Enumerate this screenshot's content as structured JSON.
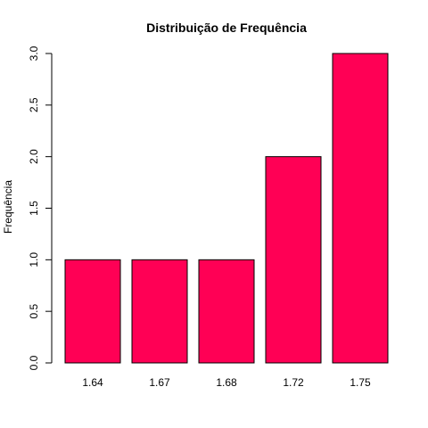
{
  "chart_data": {
    "type": "bar",
    "title": "Distribuição de Frequência",
    "xlabel": "",
    "ylabel": "Frequência",
    "categories": [
      "1.64",
      "1.67",
      "1.68",
      "1.72",
      "1.75"
    ],
    "values": [
      1,
      1,
      1,
      2,
      3
    ],
    "ylim": [
      0,
      3
    ],
    "yticks": [
      "0.0",
      "0.5",
      "1.0",
      "1.5",
      "2.0",
      "2.5",
      "3.0"
    ],
    "bar_color": "#FF0055",
    "bar_border_color": "#000000",
    "grid": false,
    "legend": "none"
  }
}
